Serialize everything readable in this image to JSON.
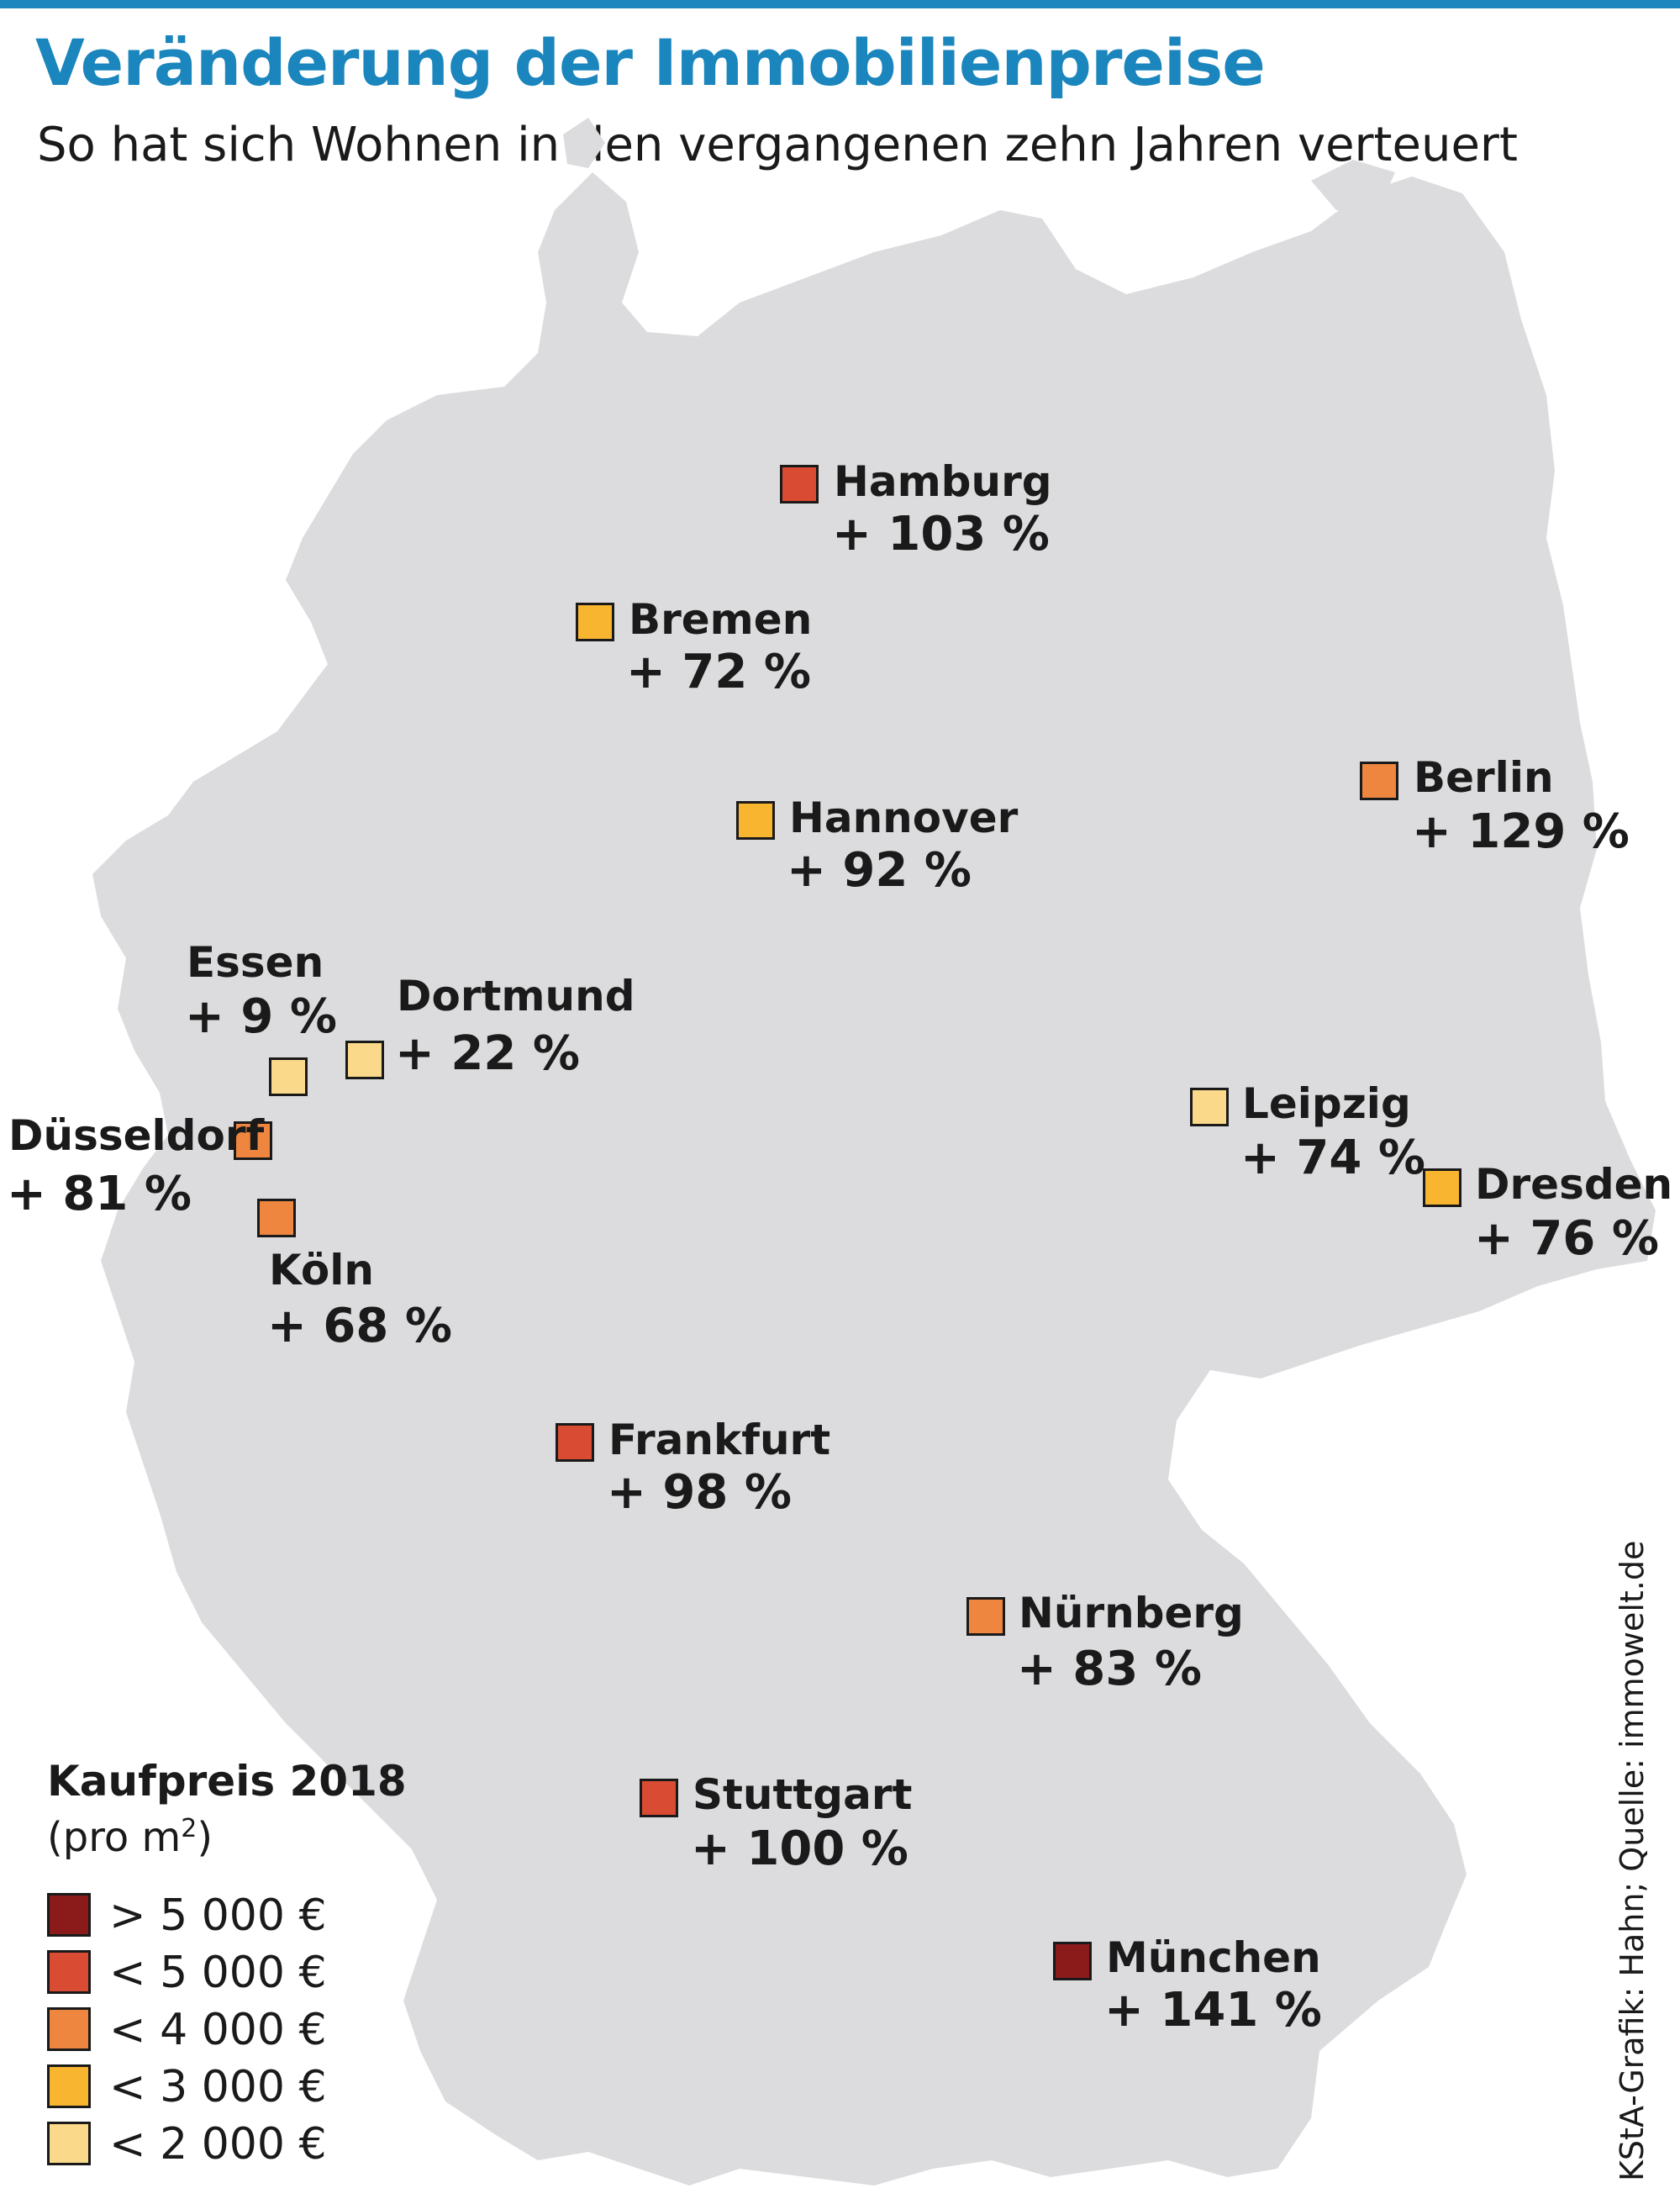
{
  "header": {
    "title": "Veränderung der Immobilienpreise",
    "subtitle": "So hat sich Wohnen in den vergangenen zehn Jahren verteuert"
  },
  "colors": {
    "accent": "#1a86bd",
    "map_fill": "#dcdcde",
    "gt_5000": "#8b1a1a",
    "lt_5000": "#d94b32",
    "lt_4000": "#ef8640",
    "lt_3000": "#f8b530",
    "lt_2000": "#fbd98a"
  },
  "cities": [
    {
      "id": "hamburg",
      "name": "Hamburg",
      "change": "+ 103 %",
      "price_class": "lt_5000"
    },
    {
      "id": "bremen",
      "name": "Bremen",
      "change": "+ 72 %",
      "price_class": "lt_3000"
    },
    {
      "id": "berlin",
      "name": "Berlin",
      "change": "+ 129 %",
      "price_class": "lt_4000"
    },
    {
      "id": "hannover",
      "name": "Hannover",
      "change": "+ 92 %",
      "price_class": "lt_3000"
    },
    {
      "id": "essen",
      "name": "Essen",
      "change": "+ 9 %",
      "price_class": "lt_2000"
    },
    {
      "id": "dortmund",
      "name": "Dortmund",
      "change": "+ 22 %",
      "price_class": "lt_2000"
    },
    {
      "id": "duesseldorf",
      "name": "Düsseldorf",
      "change": "+ 81 %",
      "price_class": "lt_4000"
    },
    {
      "id": "koeln",
      "name": "Köln",
      "change": "+ 68 %",
      "price_class": "lt_4000"
    },
    {
      "id": "leipzig",
      "name": "Leipzig",
      "change": "+ 74 %",
      "price_class": "lt_2000"
    },
    {
      "id": "dresden",
      "name": "Dresden",
      "change": "+ 76 %",
      "price_class": "lt_3000"
    },
    {
      "id": "frankfurt",
      "name": "Frankfurt",
      "change": "+ 98 %",
      "price_class": "lt_5000"
    },
    {
      "id": "nuernberg",
      "name": "Nürnberg",
      "change": "+ 83 %",
      "price_class": "lt_4000"
    },
    {
      "id": "stuttgart",
      "name": "Stuttgart",
      "change": "+ 100 %",
      "price_class": "lt_5000"
    },
    {
      "id": "muenchen",
      "name": "München",
      "change": "+ 141 %",
      "price_class": "gt_5000"
    }
  ],
  "legend": {
    "title": "Kaufpreis 2018",
    "unit_prefix": "(pro m",
    "unit_sup": "2",
    "unit_suffix": ")",
    "items": [
      {
        "label": "> 5 000 €",
        "price_class": "gt_5000"
      },
      {
        "label": "< 5 000 €",
        "price_class": "lt_5000"
      },
      {
        "label": "< 4 000 €",
        "price_class": "lt_4000"
      },
      {
        "label": "< 3 000 €",
        "price_class": "lt_3000"
      },
      {
        "label": "< 2 000 €",
        "price_class": "lt_2000"
      }
    ]
  },
  "credit": "KStA-Grafik: Hahn; Quelle: immowelt.de"
}
